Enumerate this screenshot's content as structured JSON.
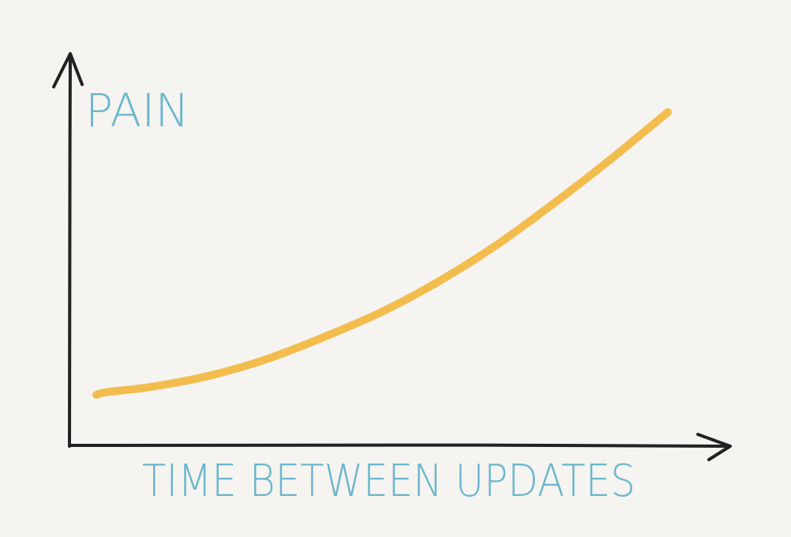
{
  "colors": {
    "background": "#f5f4f1",
    "axis": "#222222",
    "label": "#6bb6cd",
    "curve": "#f3bd4e"
  },
  "chart_data": {
    "type": "line",
    "title": "",
    "xlabel": "TIME BETWEEN UPDATES",
    "ylabel": "PAIN",
    "xlim": [
      0,
      10
    ],
    "ylim": [
      0,
      10
    ],
    "grid": false,
    "legend": "none",
    "ticks": false,
    "series": [
      {
        "color": "#f3bd4e",
        "x": [
          0,
          0.2,
          1,
          2,
          3,
          4,
          5,
          6,
          7,
          8,
          9,
          10
        ],
        "y": [
          0.8,
          0.9,
          1.1,
          1.5,
          2.1,
          2.9,
          3.8,
          4.9,
          6.2,
          7.7,
          9.3,
          11.0
        ]
      }
    ]
  }
}
